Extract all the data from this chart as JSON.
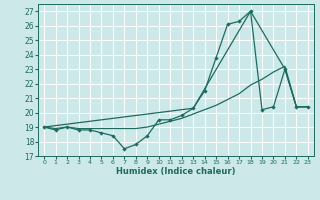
{
  "xlabel": "Humidex (Indice chaleur)",
  "background_color": "#cce8e8",
  "grid_color": "#ffffff",
  "line_color": "#1e6b5e",
  "xlim": [
    -0.5,
    23.5
  ],
  "ylim": [
    17,
    27.5
  ],
  "yticks": [
    17,
    18,
    19,
    20,
    21,
    22,
    23,
    24,
    25,
    26,
    27
  ],
  "xticks": [
    0,
    1,
    2,
    3,
    4,
    5,
    6,
    7,
    8,
    9,
    10,
    11,
    12,
    13,
    14,
    15,
    16,
    17,
    18,
    19,
    20,
    21,
    22,
    23
  ],
  "xtick_labels": [
    "0",
    "1",
    "2",
    "3",
    "4",
    "5",
    "6",
    "7",
    "8",
    "9",
    "10",
    "11",
    "12",
    "13",
    "14",
    "15",
    "16",
    "17",
    "18",
    "19",
    "20",
    "21",
    "22",
    "23"
  ],
  "series1_x": [
    0,
    1,
    2,
    3,
    4,
    5,
    6,
    7,
    8,
    9,
    10,
    11,
    12,
    13,
    14,
    15,
    16,
    17,
    18,
    19,
    20,
    21,
    22,
    23
  ],
  "series1_y": [
    19.0,
    18.8,
    19.0,
    18.8,
    18.8,
    18.6,
    18.4,
    17.5,
    17.8,
    18.4,
    19.5,
    19.5,
    19.8,
    20.3,
    21.5,
    23.8,
    26.1,
    26.3,
    27.0,
    20.2,
    20.4,
    23.0,
    20.4,
    20.4
  ],
  "series2_x": [
    0,
    1,
    2,
    3,
    4,
    5,
    6,
    7,
    8,
    9,
    10,
    11,
    12,
    13,
    14,
    15,
    16,
    17,
    18,
    19,
    20,
    21,
    22,
    23
  ],
  "series2_y": [
    19.0,
    18.9,
    19.0,
    18.9,
    18.9,
    18.9,
    18.9,
    18.9,
    18.9,
    19.0,
    19.2,
    19.4,
    19.6,
    19.9,
    20.2,
    20.5,
    20.9,
    21.3,
    21.9,
    22.3,
    22.8,
    23.2,
    20.4,
    20.4
  ],
  "series3_x": [
    0,
    13,
    18,
    21,
    22,
    23
  ],
  "series3_y": [
    19.0,
    20.3,
    27.0,
    23.0,
    20.4,
    20.4
  ]
}
